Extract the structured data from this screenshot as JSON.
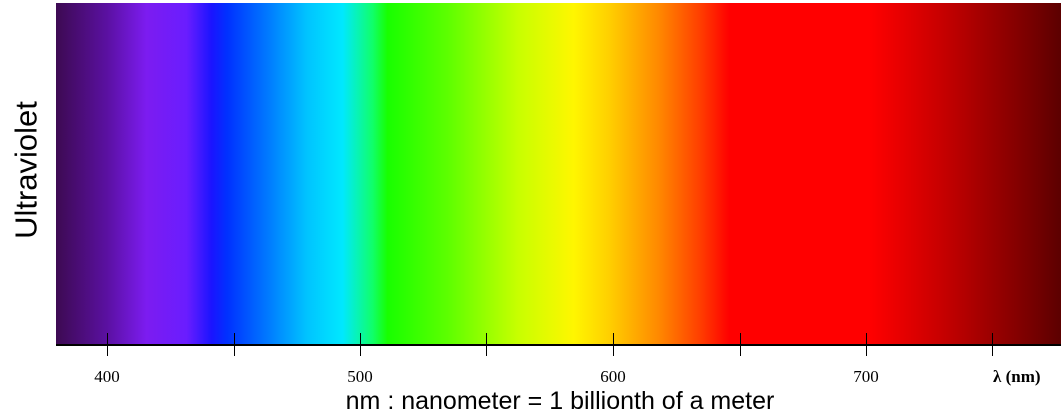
{
  "side_label": "Ultraviolet",
  "axis": {
    "ticks": [
      380,
      430,
      480,
      530,
      580,
      630,
      680,
      730,
      780
    ],
    "labeled_ticks": [
      {
        "value": 400,
        "label": "400"
      },
      {
        "value": 500,
        "label": "500"
      },
      {
        "value": 600,
        "label": "600"
      },
      {
        "value": 700,
        "label": "700"
      }
    ],
    "unit_label": "λ (nm)",
    "range": [
      380,
      778
    ]
  },
  "caption": "nm : nanometer = 1 billionth of a meter"
}
